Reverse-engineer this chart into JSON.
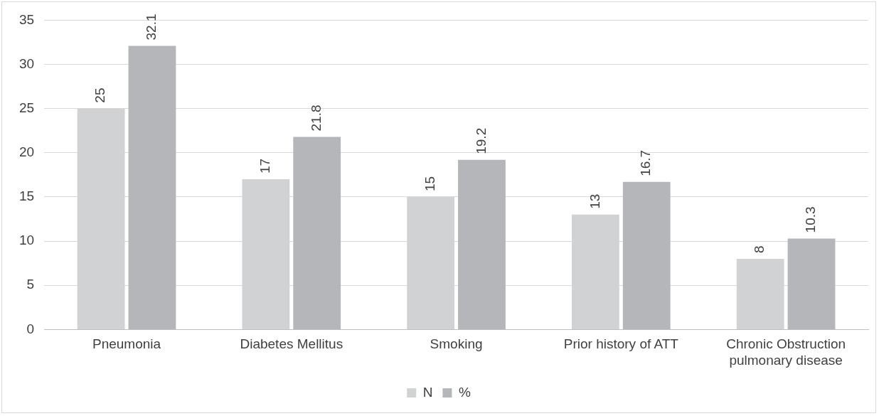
{
  "chart_data": {
    "type": "bar",
    "categories": [
      "Pneumonia",
      "Diabetes Mellitus",
      "Smoking",
      "Prior history of ATT",
      "Chronic Obstruction pulmonary disease"
    ],
    "series": [
      {
        "name": "N",
        "color": "#d1d2d4",
        "values": [
          25,
          17,
          15,
          13,
          8
        ]
      },
      {
        "name": "%",
        "color": "#b5b6b9",
        "values": [
          32.1,
          21.8,
          19.2,
          16.7,
          10.3
        ]
      }
    ],
    "ylim": [
      0,
      35
    ],
    "yticks": [
      0,
      5,
      10,
      15,
      20,
      25,
      30,
      35
    ],
    "grid": "y",
    "legend": "bottom",
    "data_labels": true
  }
}
